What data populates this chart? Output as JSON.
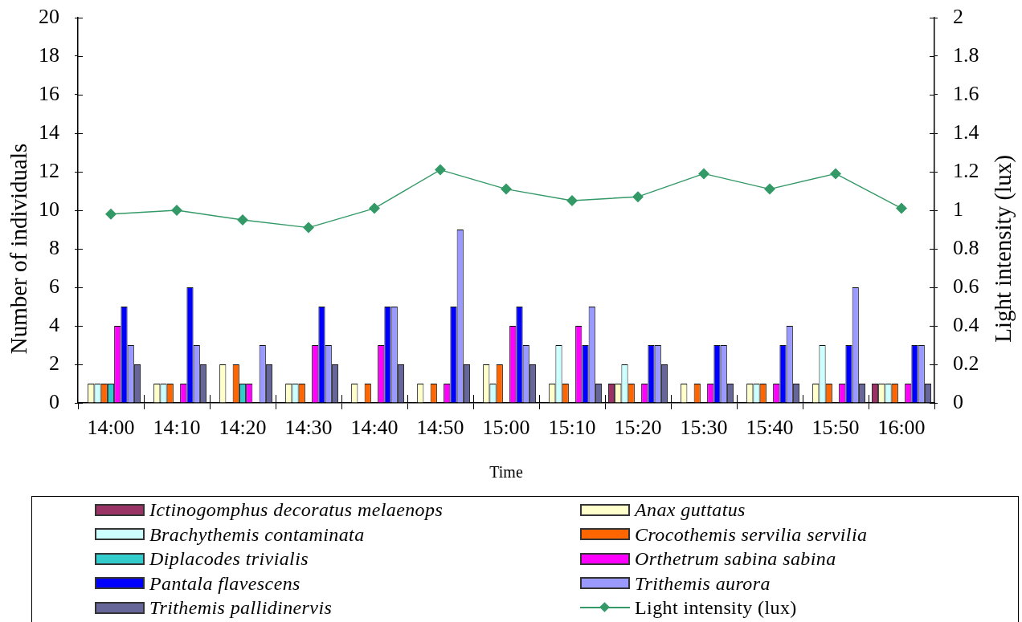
{
  "chart_data": {
    "type": "bar",
    "xlabel": "Time",
    "ylabel": "Number of individuals",
    "y2label": "Light intensity (lux)",
    "categories": [
      "14:00",
      "14:10",
      "14:20",
      "14:30",
      "14:40",
      "14:50",
      "15:00",
      "15:10",
      "15:20",
      "15:30",
      "15:40",
      "15:50",
      "16:00"
    ],
    "series": [
      {
        "name": "Ictinogomphus decoratus melaenops",
        "color": "#993366",
        "values": [
          0,
          0,
          0,
          0,
          0,
          0,
          0,
          0,
          1,
          0,
          0,
          0,
          1
        ]
      },
      {
        "name": "Anax guttatus",
        "color": "#ffffcc",
        "values": [
          1,
          1,
          2,
          1,
          1,
          1,
          2,
          1,
          1,
          1,
          1,
          1,
          1
        ]
      },
      {
        "name": "Brachythemis contaminata",
        "color": "#ccffff",
        "values": [
          1,
          1,
          0,
          1,
          0,
          0,
          1,
          3,
          2,
          0,
          1,
          3,
          1
        ]
      },
      {
        "name": "Crocothemis servilia servilia",
        "color": "#ff6600",
        "values": [
          1,
          1,
          2,
          1,
          1,
          1,
          2,
          1,
          1,
          1,
          1,
          1,
          1
        ]
      },
      {
        "name": "Diplacodes trivialis",
        "color": "#33cccc",
        "values": [
          1,
          0,
          1,
          0,
          0,
          0,
          0,
          0,
          0,
          0,
          0,
          0,
          0
        ]
      },
      {
        "name": "Orthetrum sabina sabina",
        "color": "#ff00ff",
        "values": [
          4,
          1,
          1,
          3,
          3,
          1,
          4,
          4,
          1,
          1,
          1,
          1,
          1
        ]
      },
      {
        "name": "Pantala flavescens",
        "color": "#0000ff",
        "values": [
          5,
          6,
          0,
          5,
          5,
          5,
          5,
          3,
          3,
          3,
          3,
          3,
          3
        ]
      },
      {
        "name": "Trithemis aurora",
        "color": "#9999ff",
        "values": [
          3,
          3,
          3,
          3,
          5,
          9,
          3,
          5,
          3,
          3,
          4,
          6,
          3
        ]
      },
      {
        "name": "Trithemis pallidinervis",
        "color": "#666699",
        "values": [
          2,
          2,
          2,
          2,
          2,
          2,
          2,
          1,
          2,
          1,
          1,
          1,
          1
        ]
      },
      {
        "name": "Light intensity (lux)",
        "type": "line",
        "axis": "y2",
        "color": "#339966",
        "values": [
          0.98,
          1.0,
          0.95,
          0.91,
          1.01,
          1.21,
          1.11,
          1.05,
          1.07,
          1.19,
          1.11,
          1.19,
          1.01
        ]
      }
    ],
    "ylim": [
      0,
      20
    ],
    "yticks": [
      0,
      2,
      4,
      6,
      8,
      10,
      12,
      14,
      16,
      18,
      20
    ],
    "y2lim": [
      0,
      2
    ],
    "y2ticks": [
      0,
      0.2,
      0.4,
      0.6,
      0.8,
      1,
      1.2,
      1.4,
      1.6,
      1.8,
      2
    ],
    "legend": "bottom",
    "marker": "diamond"
  }
}
